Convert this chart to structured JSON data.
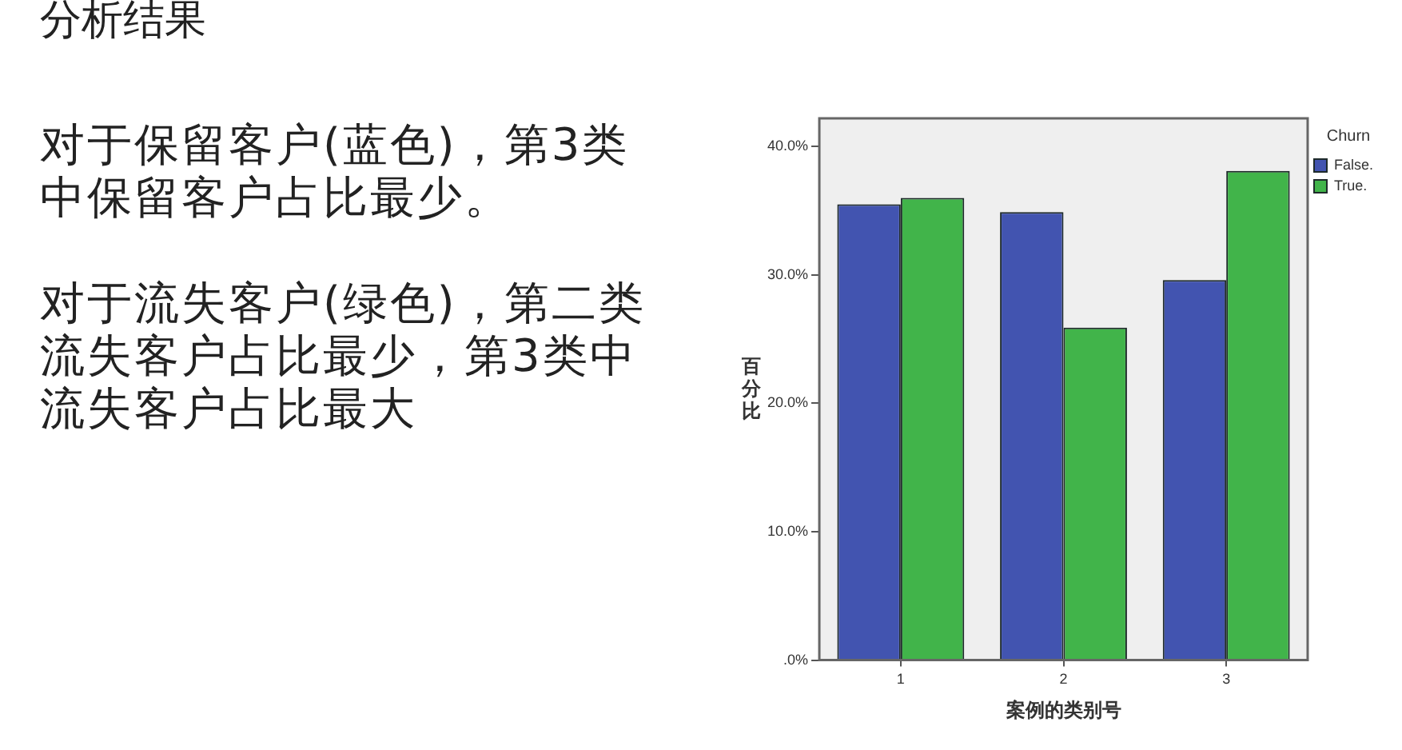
{
  "chart_data": {
    "type": "bar",
    "title": "分析结果",
    "annotations": [
      "对于保留客户(蓝色)，第3类中保留客户占比最少。",
      "对于流失客户(绿色)，第二类流失客户占比最少，第3类中流失客户占比最大"
    ],
    "xlabel": "案例的类别号",
    "ylabel": "百分比",
    "legend_title": "Churn",
    "categories": [
      "1",
      "2",
      "3"
    ],
    "series": [
      {
        "name": "False.",
        "color": "#4254b0",
        "values": [
          35.5,
          34.9,
          29.6
        ]
      },
      {
        "name": "True.",
        "color": "#41b44a",
        "values": [
          36.0,
          25.9,
          38.1
        ]
      }
    ],
    "ylim": [
      0,
      42.2
    ],
    "yticks": [
      {
        "value": 0,
        "label": ".0%"
      },
      {
        "value": 10,
        "label": "10.0%"
      },
      {
        "value": 20,
        "label": "20.0%"
      },
      {
        "value": 30,
        "label": "30.0%"
      },
      {
        "value": 40,
        "label": "40.0%"
      }
    ],
    "legend": "top right"
  }
}
